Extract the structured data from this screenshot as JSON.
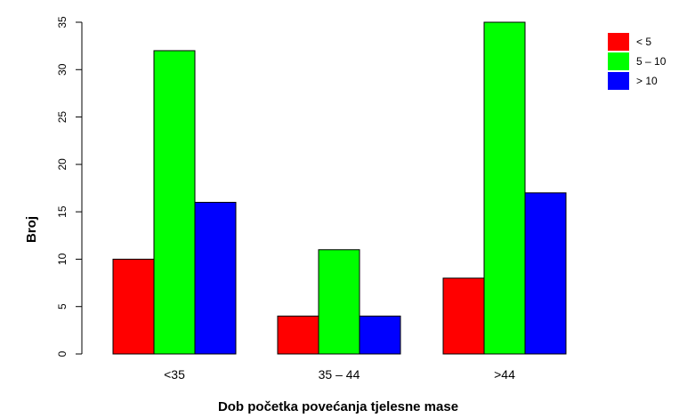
{
  "chart_data": {
    "type": "bar",
    "title": "",
    "xlabel": "Dob početka povećanja tjelesne mase",
    "ylabel": "Broj",
    "categories": [
      "<35",
      "35 – 44",
      ">44"
    ],
    "series": [
      {
        "name": "< 5",
        "color": "#ff0000",
        "values": [
          10,
          4,
          8
        ]
      },
      {
        "name": "5 – 10",
        "color": "#00ff00",
        "values": [
          32,
          11,
          35
        ]
      },
      {
        "name": "> 10",
        "color": "#0000ff",
        "values": [
          16,
          4,
          17
        ]
      }
    ],
    "yticks": [
      0,
      5,
      10,
      15,
      20,
      25,
      30,
      35
    ],
    "ylim": [
      0,
      35
    ],
    "grid": false,
    "legend_position": "top-right"
  }
}
